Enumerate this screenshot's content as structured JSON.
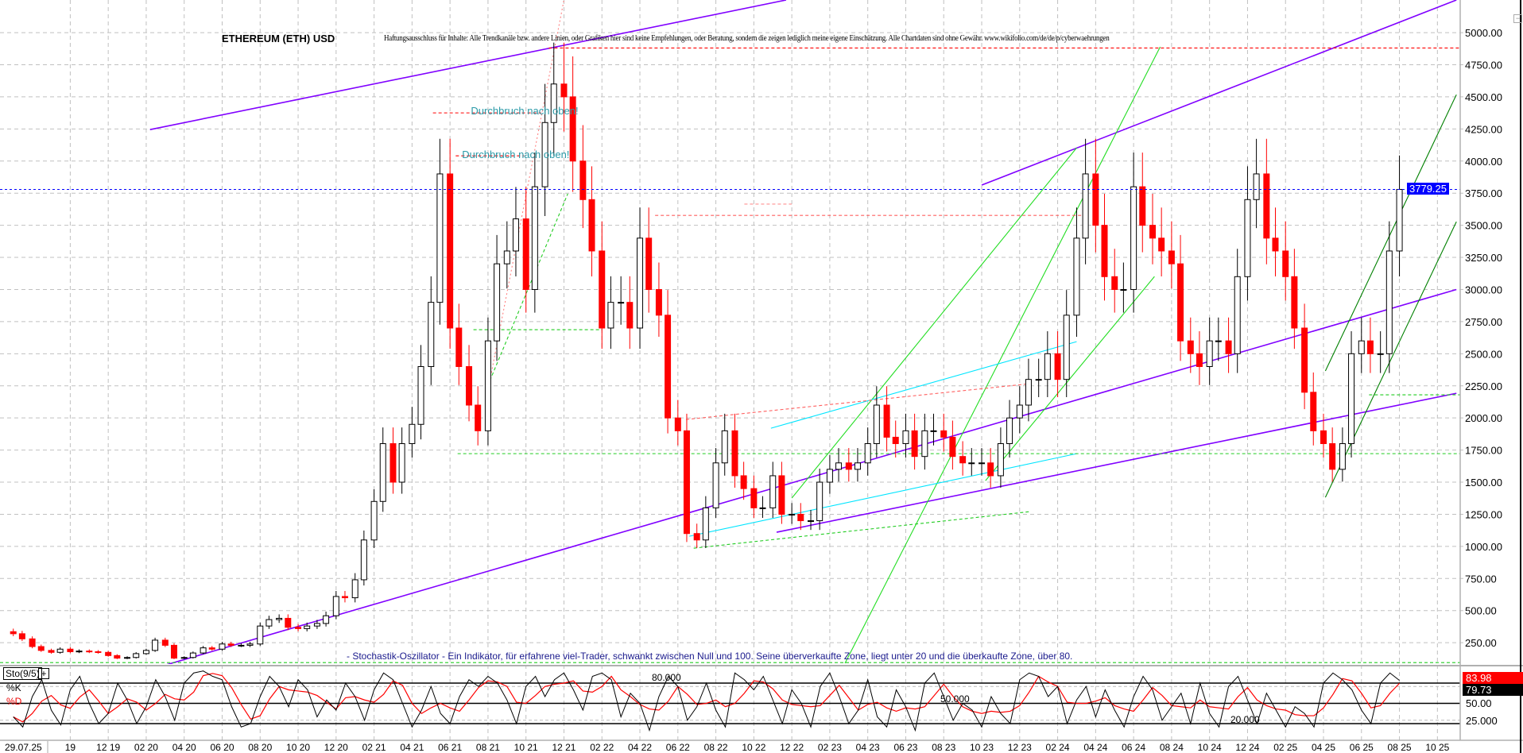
{
  "title": "ETHEREUM (ETH) USD",
  "disclaimer": "Haftungsausschluss für Inhalte: Alle Trendkanäle bzw. andere Linien, oder Grafiken hier sind keine Empfehlungen, oder Beratung, sondern die zeigen lediglich meine eigene Einschätzung. Alle Chartdaten sind ohne Gewähr.  www.wikifolio.com/de/de/p/cyberwaehrungen",
  "stoch_note": "- Stochastik-Oszillator - Ein Indikator, für erfahrene viel-Trader, schwankt zwischen Null und 100. Seine überverkaufte Zone, liegt unter 20 und die überkaufte Zone, über 80.",
  "annotations": [
    {
      "text": "Durchbruch nach oben!",
      "date": "2021-07-04",
      "price": 4437
    },
    {
      "text": "Durchbruch nach oben!",
      "date": "2021-06-20",
      "price": 4097
    }
  ],
  "stochastic": {
    "label": "Sto(9/5)",
    "k_label": "%K",
    "d_label": "%D",
    "k_color": "#000000",
    "d_color": "#ff0000",
    "level_labels": {
      "high": "80.000",
      "mid": "50.000",
      "low": "20.000"
    },
    "levels": [
      80,
      50,
      20
    ],
    "axis_labels": [
      "50.00",
      "25.000"
    ],
    "k_value": "83.98",
    "d_value": "79.73",
    "k": [
      30,
      15,
      60,
      85,
      40,
      18,
      70,
      90,
      50,
      20,
      35,
      80,
      55,
      20,
      45,
      85,
      60,
      25,
      80,
      95,
      98,
      90,
      85,
      45,
      15,
      20,
      60,
      90,
      75,
      45,
      85,
      70,
      30,
      55,
      40,
      80,
      60,
      25,
      70,
      95,
      85,
      50,
      15,
      40,
      75,
      35,
      20,
      60,
      85,
      75,
      90,
      80,
      55,
      20,
      75,
      90,
      60,
      85,
      95,
      70,
      40,
      90,
      95,
      85,
      30,
      65,
      50,
      10,
      60,
      90,
      75,
      25,
      45,
      80,
      40,
      15,
      95,
      85,
      70,
      90,
      55,
      20,
      70,
      50,
      15,
      75,
      95,
      60,
      20,
      40,
      85,
      30,
      15,
      70,
      45,
      10,
      80,
      95,
      60,
      25,
      50,
      40,
      15,
      60,
      35,
      20,
      85,
      95,
      90,
      60,
      75,
      20,
      55,
      75,
      30,
      70,
      40,
      15,
      60,
      90,
      70,
      25,
      45,
      65,
      20,
      80,
      35,
      15,
      75,
      90,
      55,
      20,
      65,
      40,
      15,
      45,
      35,
      15,
      80,
      95,
      85,
      70,
      40,
      20,
      80,
      95,
      84
    ]
  },
  "chart_data": {
    "type": "candlestick",
    "title": "ETHEREUM (ETH) USD",
    "xlim": [
      "2019-06-10",
      "2025-11-07"
    ],
    "ylim": [
      84,
      5254
    ],
    "grid": true,
    "up_color": "#000000",
    "down_color": "#ff0000",
    "current_price": {
      "value": 3779.25,
      "label": "3779.25",
      "color": "#0000ff"
    },
    "y_ticks": [
      "250.00",
      "500.00",
      "750.00",
      "1000.00",
      "1250.00",
      "1500.00",
      "1750.00",
      "2000.00",
      "2250.00",
      "2500.00",
      "2750.00",
      "3000.00",
      "3250.00",
      "3500.00",
      "3750.00",
      "4000.00",
      "4250.00",
      "4500.00",
      "4750.00",
      "5000.00"
    ],
    "cursor_date_label": "29.07.25",
    "x_ticks": [
      "10 19",
      "12 19",
      "02 20",
      "04 20",
      "06 20",
      "08 20",
      "10 20",
      "12 20",
      "02 21",
      "04 21",
      "06 21",
      "08 21",
      "10 21",
      "12 21",
      "02 22",
      "04 22",
      "06 22",
      "08 22",
      "10 22",
      "12 22",
      "02 23",
      "04 23",
      "06 23",
      "08 23",
      "10 23",
      "12 23",
      "02 24",
      "04 24",
      "06 24",
      "08 24",
      "10 24",
      "12 24",
      "02 25",
      "04 25",
      "06 25",
      "08 25",
      "10 25"
    ],
    "x_tick_display": [
      "19",
      "12 19",
      "02 20",
      "04 20",
      "06 20",
      "08 20",
      "10 20",
      "12 20",
      "02 21",
      "04 21",
      "06 21",
      "08 21",
      "10 21",
      "12 21",
      "02 22",
      "04 22",
      "06 22",
      "08 22",
      "10 22",
      "12 22",
      "02 23",
      "04 23",
      "06 23",
      "08 23",
      "10 23",
      "12 23",
      "02 24",
      "04 24",
      "06 24",
      "08 24",
      "10 24",
      "12 24",
      "02 25",
      "04 25",
      "06 25",
      "08 25",
      "10 25"
    ],
    "closes": [
      [
        "2019-07-01",
        320
      ],
      [
        "2019-07-15",
        280
      ],
      [
        "2019-08-01",
        220
      ],
      [
        "2019-08-15",
        190
      ],
      [
        "2019-09-01",
        175
      ],
      [
        "2019-09-15",
        200
      ],
      [
        "2019-10-01",
        180
      ],
      [
        "2019-10-15",
        185
      ],
      [
        "2019-11-01",
        180
      ],
      [
        "2019-11-15",
        175
      ],
      [
        "2019-12-01",
        150
      ],
      [
        "2019-12-15",
        130
      ],
      [
        "2020-01-01",
        135
      ],
      [
        "2020-01-15",
        165
      ],
      [
        "2020-02-01",
        190
      ],
      [
        "2020-02-15",
        270
      ],
      [
        "2020-03-01",
        230
      ],
      [
        "2020-03-15",
        130
      ],
      [
        "2020-04-01",
        135
      ],
      [
        "2020-04-15",
        170
      ],
      [
        "2020-05-01",
        210
      ],
      [
        "2020-05-15",
        200
      ],
      [
        "2020-06-01",
        240
      ],
      [
        "2020-06-15",
        230
      ],
      [
        "2020-07-01",
        230
      ],
      [
        "2020-07-15",
        240
      ],
      [
        "2020-08-01",
        380
      ],
      [
        "2020-08-15",
        430
      ],
      [
        "2020-09-01",
        440
      ],
      [
        "2020-09-15",
        370
      ],
      [
        "2020-10-01",
        360
      ],
      [
        "2020-10-15",
        380
      ],
      [
        "2020-11-01",
        400
      ],
      [
        "2020-11-15",
        460
      ],
      [
        "2020-12-01",
        610
      ],
      [
        "2020-12-15",
        600
      ],
      [
        "2021-01-01",
        740
      ],
      [
        "2021-01-15",
        1050
      ],
      [
        "2021-02-01",
        1350
      ],
      [
        "2021-02-15",
        1800
      ],
      [
        "2021-03-01",
        1500
      ],
      [
        "2021-03-15",
        1800
      ],
      [
        "2021-04-01",
        1950
      ],
      [
        "2021-04-15",
        2400
      ],
      [
        "2021-05-01",
        2900
      ],
      [
        "2021-05-15",
        3900
      ],
      [
        "2021-06-01",
        2700
      ],
      [
        "2021-06-15",
        2400
      ],
      [
        "2021-07-01",
        2100
      ],
      [
        "2021-07-15",
        1900
      ],
      [
        "2021-08-01",
        2600
      ],
      [
        "2021-08-15",
        3200
      ],
      [
        "2021-09-01",
        3300
      ],
      [
        "2021-09-15",
        3550
      ],
      [
        "2021-10-01",
        3000
      ],
      [
        "2021-10-15",
        3800
      ],
      [
        "2021-11-01",
        4300
      ],
      [
        "2021-11-15",
        4600
      ],
      [
        "2021-12-01",
        4500
      ],
      [
        "2021-12-15",
        4000
      ],
      [
        "2022-01-01",
        3700
      ],
      [
        "2022-01-15",
        3300
      ],
      [
        "2022-02-01",
        2700
      ],
      [
        "2022-02-15",
        2900
      ],
      [
        "2022-03-01",
        2900
      ],
      [
        "2022-03-15",
        2700
      ],
      [
        "2022-04-01",
        3400
      ],
      [
        "2022-04-15",
        3000
      ],
      [
        "2022-05-01",
        2800
      ],
      [
        "2022-05-15",
        2000
      ],
      [
        "2022-06-01",
        1900
      ],
      [
        "2022-06-15",
        1100
      ],
      [
        "2022-07-01",
        1050
      ],
      [
        "2022-07-15",
        1300
      ],
      [
        "2022-08-01",
        1650
      ],
      [
        "2022-08-15",
        1900
      ],
      [
        "2022-09-01",
        1550
      ],
      [
        "2022-09-15",
        1450
      ],
      [
        "2022-10-01",
        1300
      ],
      [
        "2022-10-15",
        1300
      ],
      [
        "2022-11-01",
        1550
      ],
      [
        "2022-11-15",
        1250
      ],
      [
        "2022-12-01",
        1250
      ],
      [
        "2022-12-15",
        1200
      ],
      [
        "2023-01-01",
        1200
      ],
      [
        "2023-01-15",
        1500
      ],
      [
        "2023-02-01",
        1600
      ],
      [
        "2023-02-15",
        1650
      ],
      [
        "2023-03-01",
        1600
      ],
      [
        "2023-03-15",
        1650
      ],
      [
        "2023-04-01",
        1800
      ],
      [
        "2023-04-15",
        2100
      ],
      [
        "2023-05-01",
        1850
      ],
      [
        "2023-05-15",
        1800
      ],
      [
        "2023-06-01",
        1900
      ],
      [
        "2023-06-15",
        1700
      ],
      [
        "2023-07-01",
        1900
      ],
      [
        "2023-07-15",
        1900
      ],
      [
        "2023-08-01",
        1850
      ],
      [
        "2023-08-15",
        1700
      ],
      [
        "2023-09-01",
        1650
      ],
      [
        "2023-09-15",
        1650
      ],
      [
        "2023-10-01",
        1650
      ],
      [
        "2023-10-15",
        1550
      ],
      [
        "2023-11-01",
        1800
      ],
      [
        "2023-11-15",
        2000
      ],
      [
        "2023-12-01",
        2100
      ],
      [
        "2023-12-15",
        2300
      ],
      [
        "2024-01-01",
        2300
      ],
      [
        "2024-01-15",
        2500
      ],
      [
        "2024-02-01",
        2300
      ],
      [
        "2024-02-15",
        2800
      ],
      [
        "2024-03-01",
        3400
      ],
      [
        "2024-03-15",
        3900
      ],
      [
        "2024-04-01",
        3500
      ],
      [
        "2024-04-15",
        3100
      ],
      [
        "2024-05-01",
        3000
      ],
      [
        "2024-05-15",
        3000
      ],
      [
        "2024-06-01",
        3800
      ],
      [
        "2024-06-15",
        3500
      ],
      [
        "2024-07-01",
        3400
      ],
      [
        "2024-07-15",
        3300
      ],
      [
        "2024-08-01",
        3200
      ],
      [
        "2024-08-15",
        2600
      ],
      [
        "2024-09-01",
        2500
      ],
      [
        "2024-09-15",
        2400
      ],
      [
        "2024-10-01",
        2600
      ],
      [
        "2024-10-15",
        2600
      ],
      [
        "2024-11-01",
        2500
      ],
      [
        "2024-11-15",
        3100
      ],
      [
        "2024-12-01",
        3700
      ],
      [
        "2024-12-15",
        3900
      ],
      [
        "2025-01-01",
        3400
      ],
      [
        "2025-01-15",
        3300
      ],
      [
        "2025-02-01",
        3100
      ],
      [
        "2025-02-15",
        2700
      ],
      [
        "2025-03-01",
        2200
      ],
      [
        "2025-03-15",
        1900
      ],
      [
        "2025-04-01",
        1800
      ],
      [
        "2025-04-15",
        1600
      ],
      [
        "2025-05-01",
        1800
      ],
      [
        "2025-05-15",
        2500
      ],
      [
        "2025-06-01",
        2600
      ],
      [
        "2025-06-15",
        2500
      ],
      [
        "2025-07-01",
        2500
      ],
      [
        "2025-07-15",
        3300
      ],
      [
        "2025-08-01",
        3779.25
      ]
    ],
    "trendlines": [
      {
        "color": "#8000ff",
        "style": "solid",
        "from": [
          "2020-02-07",
          4245
        ],
        "to": [
          "2022-11-22",
          5254
        ]
      },
      {
        "color": "#8000ff",
        "style": "solid",
        "from": [
          "2020-03-04",
          80
        ],
        "to": [
          "2025-11-01",
          3000
        ]
      },
      {
        "color": "#8000ff",
        "style": "solid",
        "from": [
          "2022-11-07",
          1110
        ],
        "to": [
          "2025-11-01",
          2192
        ]
      },
      {
        "color": "#8000ff",
        "style": "solid",
        "from": [
          "2023-10-01",
          3813
        ],
        "to": [
          "2025-11-01",
          5254
        ]
      },
      {
        "color": "#22dd22",
        "style": "solid",
        "from": [
          "2023-02-25",
          90
        ],
        "to": [
          "2024-07-13",
          4889
        ]
      },
      {
        "color": "#22dd22",
        "style": "solid",
        "from": [
          "2022-12-01",
          1376
        ],
        "to": [
          "2024-03-01",
          4103
        ]
      },
      {
        "color": "#22dd22",
        "style": "solid",
        "from": [
          "2023-10-07",
          1512
        ],
        "to": [
          "2024-07-04",
          3101
        ]
      },
      {
        "color": "#008000",
        "style": "solid",
        "from": [
          "2025-04-04",
          2366
        ],
        "to": [
          "2025-11-01",
          4517
        ]
      },
      {
        "color": "#008000",
        "style": "solid",
        "from": [
          "2025-04-04",
          1382
        ],
        "to": [
          "2025-11-01",
          3528
        ]
      },
      {
        "color": "#00e5ff",
        "style": "solid",
        "from": [
          "2022-10-28",
          1920
        ],
        "to": [
          "2024-03-01",
          2594
        ]
      },
      {
        "color": "#00e5ff",
        "style": "solid",
        "from": [
          "2022-06-19",
          1079
        ],
        "to": [
          "2024-03-01",
          1722
        ]
      },
      {
        "color": "#22cc22",
        "style": "dashed",
        "from": [
          "2021-06-13",
          1722
        ],
        "to": [
          "2025-11-07",
          1722
        ]
      },
      {
        "color": "#22cc22",
        "style": "dashed",
        "from": [
          "2021-07-08",
          2687
        ],
        "to": [
          "2022-02-01",
          2687
        ]
      },
      {
        "color": "#22cc22",
        "style": "dashed",
        "from": [
          "2025-06-13",
          2180
        ],
        "to": [
          "2025-11-07",
          2180
        ]
      },
      {
        "color": "#22cc22",
        "style": "dashed",
        "from": [
          "2019-06-10",
          95
        ],
        "to": [
          "2025-11-07",
          95
        ]
      },
      {
        "color": "#22cc22",
        "style": "dashed",
        "from": [
          "2022-06-26",
          986
        ],
        "to": [
          "2023-12-18",
          1271
        ]
      },
      {
        "color": "#22cc22",
        "style": "dashed",
        "from": [
          "2021-08-04",
          2291
        ],
        "to": [
          "2021-12-07",
          3745
        ]
      },
      {
        "color": "#ff0000",
        "style": "dashed",
        "from": [
          "2021-05-04",
          4375
        ],
        "to": [
          "2021-10-25",
          4375
        ]
      },
      {
        "color": "#ff0000",
        "style": "dashed",
        "from": [
          "2021-06-10",
          4041
        ],
        "to": [
          "2021-09-28",
          4041
        ]
      },
      {
        "color": "#ff6060",
        "style": "dashed",
        "from": [
          "2022-04-25",
          3577
        ],
        "to": [
          "2024-03-19",
          3577
        ]
      },
      {
        "color": "#ff6060",
        "style": "dashed",
        "from": [
          "2022-06-14",
          1988
        ],
        "to": [
          "2023-12-18",
          2267
        ]
      },
      {
        "color": "#ff0000",
        "style": "dashed",
        "from": [
          "2021-11-07",
          4880
        ],
        "to": [
          "2025-11-07",
          4880
        ]
      },
      {
        "color": "#ff8080",
        "style": "dotted",
        "from": [
          "2021-08-04",
          2291
        ],
        "to": [
          "2021-12-01",
          5254
        ]
      },
      {
        "color": "#ff9090",
        "style": "dashed",
        "from": [
          "2022-09-16",
          3665
        ],
        "to": [
          "2022-12-01",
          3665
        ]
      }
    ]
  }
}
